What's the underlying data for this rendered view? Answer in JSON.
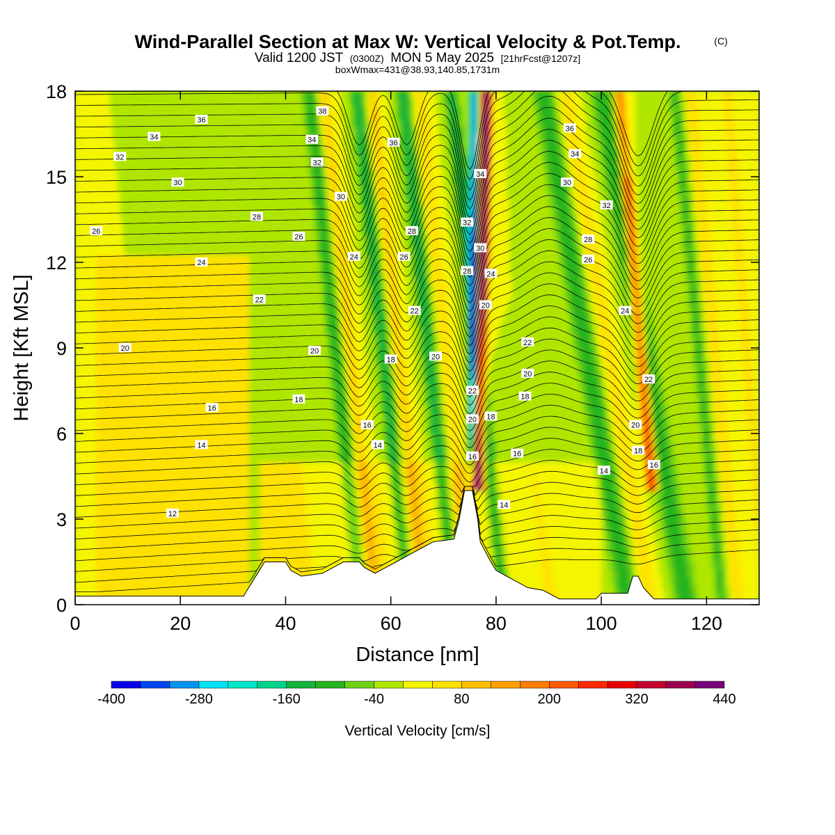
{
  "header": {
    "title": "Wind-Parallel Section at Max W: Vertical Velocity & Pot.Temp.",
    "copyright": "(C)",
    "valid_prefix": "Valid 1200 JST",
    "utc": "(0300Z)",
    "valid_date": "MON 5 May 2025",
    "forecast": "[21hrFcst@1207z]",
    "box_wmax": "boxWmax=431@38.93,140.85,1731m"
  },
  "chart_data": {
    "type": "heatmap",
    "xlabel": "Distance [nm]",
    "ylabel": "Height [Kft MSL]",
    "xlim": [
      0,
      130
    ],
    "ylim": [
      0,
      18
    ],
    "x_ticks": [
      0,
      20,
      40,
      60,
      80,
      100,
      120
    ],
    "y_ticks": [
      0,
      3,
      6,
      9,
      12,
      15,
      18
    ],
    "colorbar": {
      "title": "Vertical Velocity [cm/s]",
      "levels": [
        -400,
        -360,
        -320,
        -280,
        -240,
        -200,
        -160,
        -120,
        -80,
        -40,
        0,
        40,
        80,
        120,
        160,
        200,
        240,
        280,
        320,
        360,
        400,
        440
      ],
      "labels": [
        "-400",
        "-280",
        "-160",
        "-40",
        "80",
        "200",
        "320",
        "440"
      ],
      "label_values": [
        -400,
        -280,
        -160,
        -40,
        80,
        200,
        320,
        440
      ],
      "colors": [
        "#0a00e6",
        "#0046f0",
        "#0096f0",
        "#00e1f5",
        "#00e6c8",
        "#00d28c",
        "#14b43c",
        "#28b41e",
        "#6ed214",
        "#afe600",
        "#f5f500",
        "#ffe100",
        "#ffbe00",
        "#ffa000",
        "#ff7d00",
        "#ff5a00",
        "#ff2800",
        "#e60000",
        "#c3002d",
        "#9b0050",
        "#780078"
      ]
    },
    "terrain": [
      [
        0,
        0.3
      ],
      [
        32,
        0.3
      ],
      [
        33,
        0.6
      ],
      [
        34,
        0.9
      ],
      [
        35,
        1.2
      ],
      [
        36,
        1.5
      ],
      [
        40,
        1.5
      ],
      [
        41,
        1.2
      ],
      [
        43,
        1.0
      ],
      [
        47,
        1.1
      ],
      [
        49,
        1.3
      ],
      [
        51,
        1.5
      ],
      [
        54,
        1.5
      ],
      [
        55,
        1.3
      ],
      [
        57,
        1.1
      ],
      [
        59,
        1.3
      ],
      [
        61,
        1.5
      ],
      [
        64,
        1.8
      ],
      [
        66,
        2.0
      ],
      [
        68,
        2.2
      ],
      [
        72,
        2.3
      ],
      [
        73,
        3.0
      ],
      [
        74,
        4.0
      ],
      [
        75.5,
        4.0
      ],
      [
        76.5,
        3.0
      ],
      [
        77,
        2.2
      ],
      [
        79,
        1.5
      ],
      [
        80,
        1.2
      ],
      [
        82,
        1.0
      ],
      [
        84,
        0.8
      ],
      [
        86,
        0.6
      ],
      [
        89,
        0.5
      ],
      [
        91,
        0.3
      ],
      [
        92,
        0.2
      ],
      [
        99,
        0.2
      ],
      [
        100,
        0.4
      ],
      [
        105,
        0.4
      ],
      [
        106,
        1.0
      ],
      [
        107,
        1.0
      ],
      [
        108,
        0.6
      ],
      [
        109,
        0.4
      ],
      [
        110,
        0.2
      ],
      [
        130,
        0.2
      ]
    ],
    "contour_labels": [
      {
        "x": 47,
        "y": 17.3,
        "v": "38"
      },
      {
        "x": 24,
        "y": 17.0,
        "v": "36"
      },
      {
        "x": 60.5,
        "y": 16.2,
        "v": "36"
      },
      {
        "x": 94,
        "y": 16.7,
        "v": "36"
      },
      {
        "x": 15,
        "y": 16.4,
        "v": "34"
      },
      {
        "x": 45,
        "y": 16.3,
        "v": "34"
      },
      {
        "x": 77,
        "y": 15.1,
        "v": "34"
      },
      {
        "x": 95,
        "y": 15.8,
        "v": "34"
      },
      {
        "x": 8.5,
        "y": 15.7,
        "v": "32"
      },
      {
        "x": 46,
        "y": 15.5,
        "v": "32"
      },
      {
        "x": 74.5,
        "y": 13.4,
        "v": "32"
      },
      {
        "x": 101,
        "y": 14.0,
        "v": "32"
      },
      {
        "x": 19.5,
        "y": 14.8,
        "v": "30"
      },
      {
        "x": 50.5,
        "y": 14.3,
        "v": "30"
      },
      {
        "x": 77,
        "y": 12.5,
        "v": "30"
      },
      {
        "x": 93.5,
        "y": 14.8,
        "v": "30"
      },
      {
        "x": 34.5,
        "y": 13.6,
        "v": "28"
      },
      {
        "x": 64,
        "y": 13.1,
        "v": "28"
      },
      {
        "x": 74.5,
        "y": 11.7,
        "v": "28"
      },
      {
        "x": 97.5,
        "y": 12.8,
        "v": "28"
      },
      {
        "x": 4,
        "y": 13.1,
        "v": "26"
      },
      {
        "x": 42.5,
        "y": 12.9,
        "v": "26"
      },
      {
        "x": 62.5,
        "y": 12.2,
        "v": "26"
      },
      {
        "x": 97.5,
        "y": 12.1,
        "v": "26"
      },
      {
        "x": 24,
        "y": 12.0,
        "v": "24"
      },
      {
        "x": 53,
        "y": 12.2,
        "v": "24"
      },
      {
        "x": 79,
        "y": 11.6,
        "v": "24"
      },
      {
        "x": 104.5,
        "y": 10.3,
        "v": "24"
      },
      {
        "x": 35,
        "y": 10.7,
        "v": "22"
      },
      {
        "x": 64.5,
        "y": 10.3,
        "v": "22"
      },
      {
        "x": 86,
        "y": 9.2,
        "v": "22"
      },
      {
        "x": 75.5,
        "y": 7.5,
        "v": "22"
      },
      {
        "x": 109,
        "y": 7.9,
        "v": "22"
      },
      {
        "x": 9.5,
        "y": 9.0,
        "v": "20"
      },
      {
        "x": 45.5,
        "y": 8.9,
        "v": "20"
      },
      {
        "x": 68.5,
        "y": 8.7,
        "v": "20"
      },
      {
        "x": 78,
        "y": 10.5,
        "v": "20"
      },
      {
        "x": 86,
        "y": 8.1,
        "v": "20"
      },
      {
        "x": 75.5,
        "y": 6.5,
        "v": "20"
      },
      {
        "x": 106.5,
        "y": 6.3,
        "v": "20"
      },
      {
        "x": 60,
        "y": 8.6,
        "v": "18"
      },
      {
        "x": 42.5,
        "y": 7.2,
        "v": "18"
      },
      {
        "x": 85.5,
        "y": 7.3,
        "v": "18"
      },
      {
        "x": 79,
        "y": 6.6,
        "v": "18"
      },
      {
        "x": 107,
        "y": 5.4,
        "v": "18"
      },
      {
        "x": 26,
        "y": 6.9,
        "v": "16"
      },
      {
        "x": 55.5,
        "y": 6.3,
        "v": "16"
      },
      {
        "x": 75.5,
        "y": 5.2,
        "v": "16"
      },
      {
        "x": 84,
        "y": 5.3,
        "v": "16"
      },
      {
        "x": 110,
        "y": 4.9,
        "v": "16"
      },
      {
        "x": 24,
        "y": 5.6,
        "v": "14"
      },
      {
        "x": 57.5,
        "y": 5.6,
        "v": "14"
      },
      {
        "x": 100.5,
        "y": 4.7,
        "v": "14"
      },
      {
        "x": 81.5,
        "y": 3.5,
        "v": "14"
      },
      {
        "x": 18.5,
        "y": 3.2,
        "v": "12"
      }
    ]
  }
}
